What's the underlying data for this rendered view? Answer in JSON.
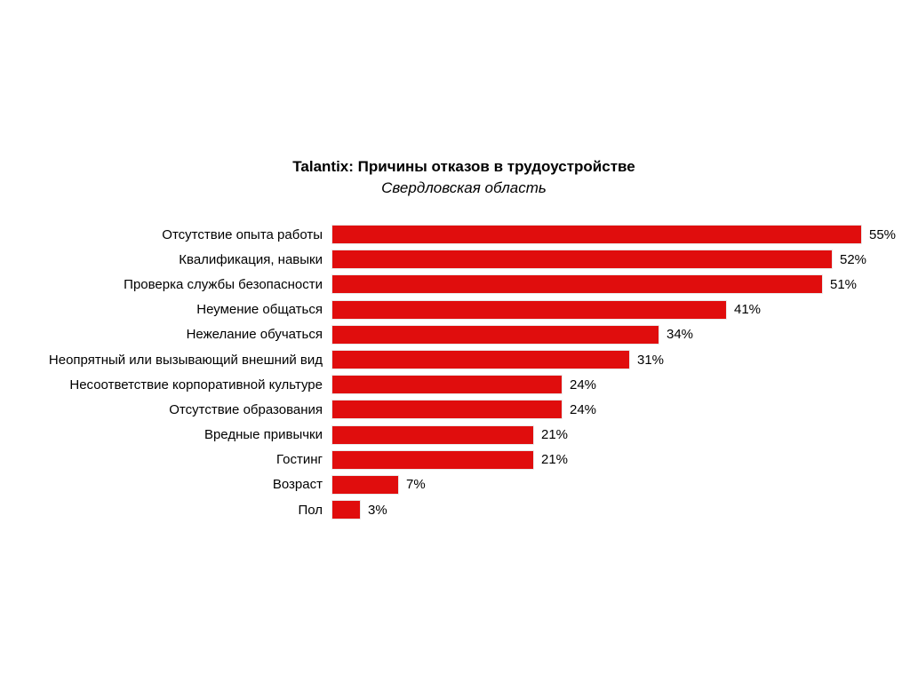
{
  "page": {
    "background_color": "#ffffff",
    "text_color": "#000000"
  },
  "chart_data": {
    "type": "bar",
    "orientation": "horizontal",
    "title": "Talantix: Причины отказов в трудоустройстве",
    "subtitle": "Свердловская область",
    "categories": [
      "Отсутствие опыта работы",
      "Квалификация, навыки",
      "Проверка службы безопасности",
      "Неумение общаться",
      "Нежелание обучаться",
      "Неопрятный или вызывающий внешний вид",
      "Несоответствие корпоративной культуре",
      "Отсутствие образования",
      "Вредные привычки",
      "Гостинг",
      "Возраст",
      "Пол"
    ],
    "values": [
      55,
      52,
      51,
      41,
      34,
      31,
      24,
      24,
      21,
      21,
      7,
      3
    ],
    "value_suffix": "%",
    "value_labels_position": "outside-end",
    "bar_color": "#e00d0d",
    "bar_border_color": "#e9e9e9",
    "xlim": [
      0,
      60
    ],
    "grid": false,
    "legend": "none",
    "xlabel": "",
    "ylabel": ""
  }
}
